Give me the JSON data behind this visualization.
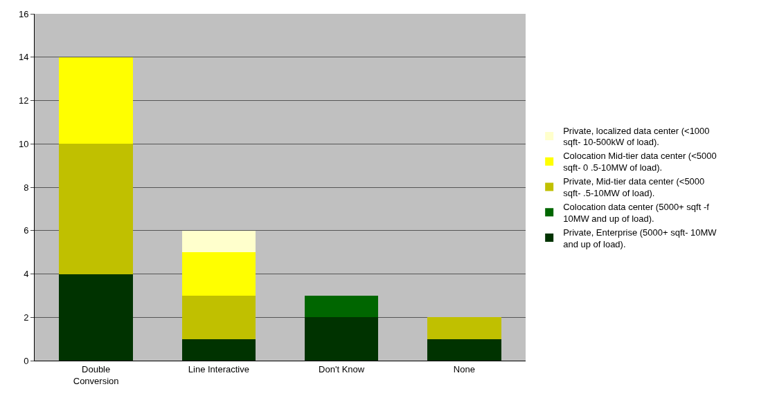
{
  "chart_data": {
    "type": "bar",
    "stacked": true,
    "categories": [
      "Double Conversion",
      "Line Interactive",
      "Don't Know",
      "None"
    ],
    "series": [
      {
        "name": "Private, Enterprise (5000+ sqft- 10MW and up of load).",
        "color": "#003300",
        "values": [
          4,
          1,
          2,
          1
        ]
      },
      {
        "name": "Colocation data center (5000+ sqft -f 10MW and up of load).",
        "color": "#006600",
        "values": [
          0,
          0,
          1,
          0
        ]
      },
      {
        "name": "Private, Mid-tier data center (<5000 sqft- .5-10MW of load).",
        "color": "#c0c000",
        "values": [
          6,
          2,
          0,
          1
        ]
      },
      {
        "name": "Colocation Mid-tier data center (<5000 sqft- 0 .5-10MW of load).",
        "color": "#ffff00",
        "values": [
          4,
          2,
          0,
          0
        ]
      },
      {
        "name": "Private, localized data center (<1000 sqft- 10-500kW of load).",
        "color": "#ffffcc",
        "values": [
          0,
          1,
          0,
          0
        ]
      }
    ],
    "ylim": [
      0,
      16
    ],
    "yticks": [
      0,
      2,
      4,
      6,
      8,
      10,
      12,
      14,
      16
    ],
    "grid": "y",
    "legend": "right"
  }
}
